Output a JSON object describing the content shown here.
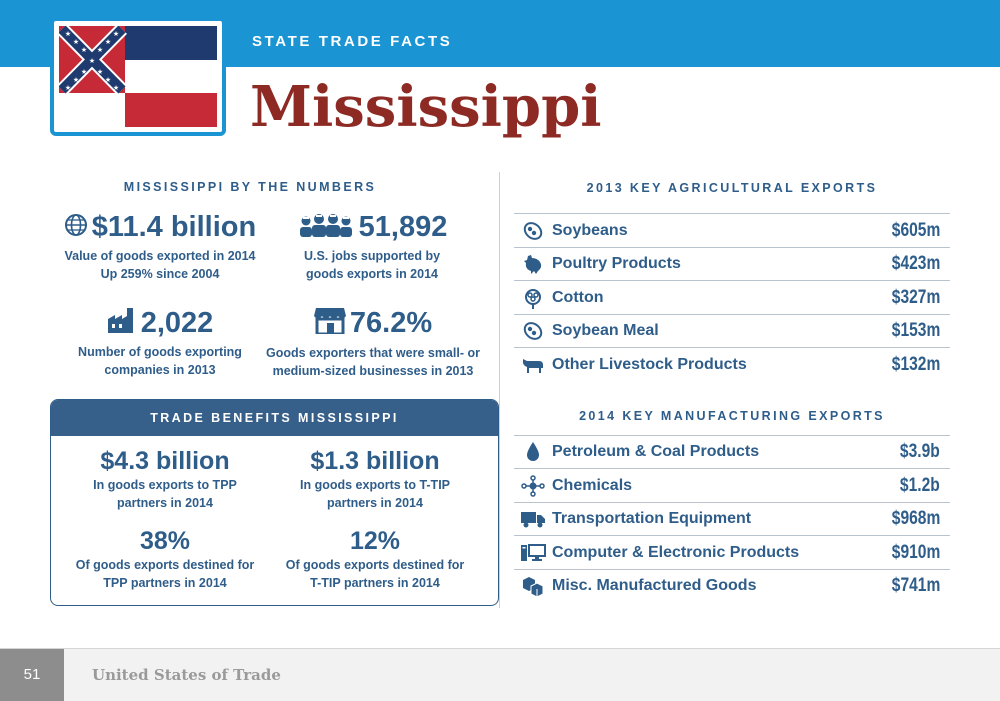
{
  "header": {
    "kicker": "STATE TRADE FACTS",
    "title": "Mississippi"
  },
  "by_numbers": {
    "heading": "MISSISSIPPI BY THE NUMBERS",
    "stats": [
      {
        "value": "$11.4 billion",
        "line1": "Value of goods exported in 2014",
        "line2": "Up 259% since 2004",
        "icon": "globe-icon"
      },
      {
        "value": "51,892",
        "line1": "U.S. jobs supported by",
        "line2": "goods exports in 2014",
        "icon": "workers-icon"
      },
      {
        "value": "2,022",
        "line1": "Number of goods exporting",
        "line2": "companies in 2013",
        "icon": "factory-icon"
      },
      {
        "value": "76.2%",
        "line1": "Goods exporters that were small- or",
        "line2": "medium-sized businesses in 2013",
        "icon": "storefront-icon"
      }
    ]
  },
  "benefits": {
    "heading": "TRADE BENEFITS MISSISSIPPI",
    "stats": [
      {
        "value": "$4.3 billion",
        "line1": "In goods exports to TPP",
        "line2": "partners in 2014"
      },
      {
        "value": "$1.3 billion",
        "line1": "In goods exports to T-TIP",
        "line2": "partners in 2014"
      },
      {
        "value": "38%",
        "line1": "Of goods exports destined for",
        "line2": "TPP partners in 2014"
      },
      {
        "value": "12%",
        "line1": "Of goods exports destined for",
        "line2": "T-TIP partners in 2014"
      }
    ]
  },
  "agri": {
    "heading": "2013 KEY AGRICULTURAL EXPORTS",
    "rows": [
      {
        "name": "Soybeans",
        "value": "$605m",
        "icon": "soybean-icon"
      },
      {
        "name": "Poultry Products",
        "value": "$423m",
        "icon": "chicken-icon"
      },
      {
        "name": "Cotton",
        "value": "$327m",
        "icon": "cotton-icon"
      },
      {
        "name": "Soybean Meal",
        "value": "$153m",
        "icon": "soybean-icon"
      },
      {
        "name": "Other Livestock Products",
        "value": "$132m",
        "icon": "cow-icon"
      }
    ]
  },
  "manuf": {
    "heading": "2014 KEY MANUFACTURING EXPORTS",
    "rows": [
      {
        "name": "Petroleum & Coal Products",
        "value": "$3.9b",
        "icon": "oil-drop-icon"
      },
      {
        "name": "Chemicals",
        "value": "$1.2b",
        "icon": "molecule-icon"
      },
      {
        "name": "Transportation Equipment",
        "value": "$968m",
        "icon": "truck-icon"
      },
      {
        "name": "Computer & Electronic Products",
        "value": "$910m",
        "icon": "computer-icon"
      },
      {
        "name": "Misc. Manufactured Goods",
        "value": "$741m",
        "icon": "boxes-icon"
      }
    ]
  },
  "footer": {
    "page_number": "51",
    "publication": "United States of Trade"
  },
  "colors": {
    "header_blue": "#1a94d2",
    "text_blue": "#2f5d8a",
    "title_red": "#8e2a24",
    "band_blue": "#365f8a"
  }
}
